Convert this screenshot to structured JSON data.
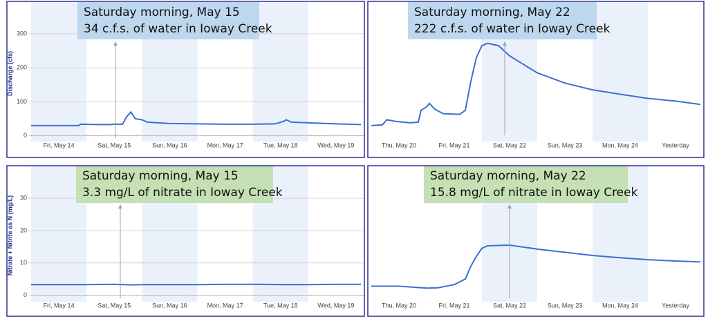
{
  "chart_data": [
    {
      "type": "line",
      "ylabel": "Discharge (cfs)",
      "annotation": [
        "Saturday morning, May 15",
        "34 c.f.s. of water in Ioway Creek"
      ],
      "color": "#3b6fd0",
      "x": [
        14.0,
        14.5,
        14.85,
        14.9,
        15.2,
        15.45,
        15.5,
        15.65,
        15.72,
        15.8,
        15.88,
        16.0,
        16.1,
        16.5,
        17.0,
        17.5,
        18.0,
        18.4,
        18.55,
        18.6,
        18.7,
        19.0,
        19.5,
        19.95
      ],
      "values": [
        30,
        30,
        30,
        34,
        33,
        33,
        34,
        34,
        55,
        70,
        50,
        47,
        40,
        36,
        35,
        34,
        34,
        35,
        42,
        47,
        40,
        38,
        35,
        33
      ],
      "xlim": [
        14,
        20
      ],
      "ylim": [
        -17,
        383
      ],
      "xticks": [
        {
          "value": 14.5,
          "label": "Fri, May 14"
        },
        {
          "value": 15.5,
          "label": "Sat, May 15"
        },
        {
          "value": 16.5,
          "label": "Sun, May 16"
        },
        {
          "value": 17.5,
          "label": "Mon, May 17"
        },
        {
          "value": 18.5,
          "label": "Tue, May 18"
        },
        {
          "value": 19.5,
          "label": "Wed, May 19"
        }
      ],
      "yticks": [
        0,
        100,
        200,
        300
      ],
      "grid": true
    },
    {
      "type": "line",
      "annotation": [
        "Saturday morning, May 22",
        "222 c.f.s. of water in Ioway Creek"
      ],
      "color": "#3b6fd0",
      "x": [
        20.0,
        20.2,
        20.28,
        20.45,
        20.7,
        20.85,
        20.9,
        21.0,
        21.05,
        21.15,
        21.3,
        21.6,
        21.7,
        21.8,
        21.9,
        22.0,
        22.1,
        22.3,
        22.5,
        22.75,
        23.0,
        23.5,
        24.0,
        24.5,
        25.0,
        25.5,
        25.95
      ],
      "values": [
        30,
        32,
        47,
        42,
        38,
        40,
        75,
        85,
        95,
        78,
        65,
        63,
        75,
        160,
        230,
        265,
        272,
        265,
        235,
        210,
        185,
        155,
        135,
        122,
        110,
        102,
        92
      ],
      "xlim": [
        20,
        26
      ],
      "ylim": [
        -17,
        383
      ],
      "xticks": [
        {
          "value": 20.5,
          "label": "Thu, May 20"
        },
        {
          "value": 21.5,
          "label": "Fri, May 21"
        },
        {
          "value": 22.5,
          "label": "Sat, May 22"
        },
        {
          "value": 23.5,
          "label": "Sun, May 23"
        },
        {
          "value": 24.5,
          "label": "Mon, May 24"
        },
        {
          "value": 25.5,
          "label": "Yesterday"
        }
      ]
    },
    {
      "type": "line",
      "ylabel": "Nitrate + Nitrite as N (mg/L)",
      "annotation": [
        "Saturday morning, May 15",
        "3.3 mg/L of nitrate in Ioway Creek"
      ],
      "color": "#3b6fd0",
      "x": [
        14.0,
        14.5,
        15.0,
        15.5,
        15.8,
        16.0,
        16.5,
        17.0,
        17.5,
        18.0,
        18.5,
        19.0,
        19.5,
        19.95
      ],
      "values": [
        3.3,
        3.3,
        3.3,
        3.4,
        3.2,
        3.3,
        3.3,
        3.3,
        3.4,
        3.4,
        3.3,
        3.3,
        3.4,
        3.4
      ],
      "xlim": [
        14,
        20
      ],
      "ylim": [
        -2,
        39
      ],
      "xticks": [
        {
          "value": 14.5,
          "label": "Fri, May 14"
        },
        {
          "value": 15.5,
          "label": "Sat, May 15"
        },
        {
          "value": 16.5,
          "label": "Sun, May 16"
        },
        {
          "value": 17.5,
          "label": "Mon, May 17"
        },
        {
          "value": 18.5,
          "label": "Tue, May 18"
        },
        {
          "value": 19.5,
          "label": "Wed, May 19"
        }
      ],
      "yticks": [
        0,
        10,
        20,
        30
      ],
      "grid": true
    },
    {
      "type": "line",
      "annotation": [
        "Saturday morning, May 22",
        "15.8 mg/L of nitrate in Ioway Creek"
      ],
      "color": "#3b6fd0",
      "x": [
        20.0,
        20.5,
        21.0,
        21.2,
        21.5,
        21.7,
        21.8,
        21.9,
        22.0,
        22.1,
        22.5,
        23.0,
        23.5,
        24.0,
        24.5,
        25.0,
        25.5,
        25.95
      ],
      "values": [
        2.8,
        2.8,
        2.2,
        2.3,
        3.3,
        5,
        9,
        12,
        14.5,
        15.3,
        15.5,
        14.3,
        13.3,
        12.3,
        11.6,
        11.0,
        10.6,
        10.3
      ],
      "xlim": [
        20,
        26
      ],
      "ylim": [
        -2,
        39
      ],
      "xticks": [
        {
          "value": 20.5,
          "label": "Thu, May 20"
        },
        {
          "value": 21.5,
          "label": "Fri, May 21"
        },
        {
          "value": 22.5,
          "label": "Sat, May 22"
        },
        {
          "value": 23.5,
          "label": "Sun, May 23"
        },
        {
          "value": 24.5,
          "label": "Mon, May 24"
        },
        {
          "value": 25.5,
          "label": "Yesterday"
        }
      ]
    }
  ]
}
